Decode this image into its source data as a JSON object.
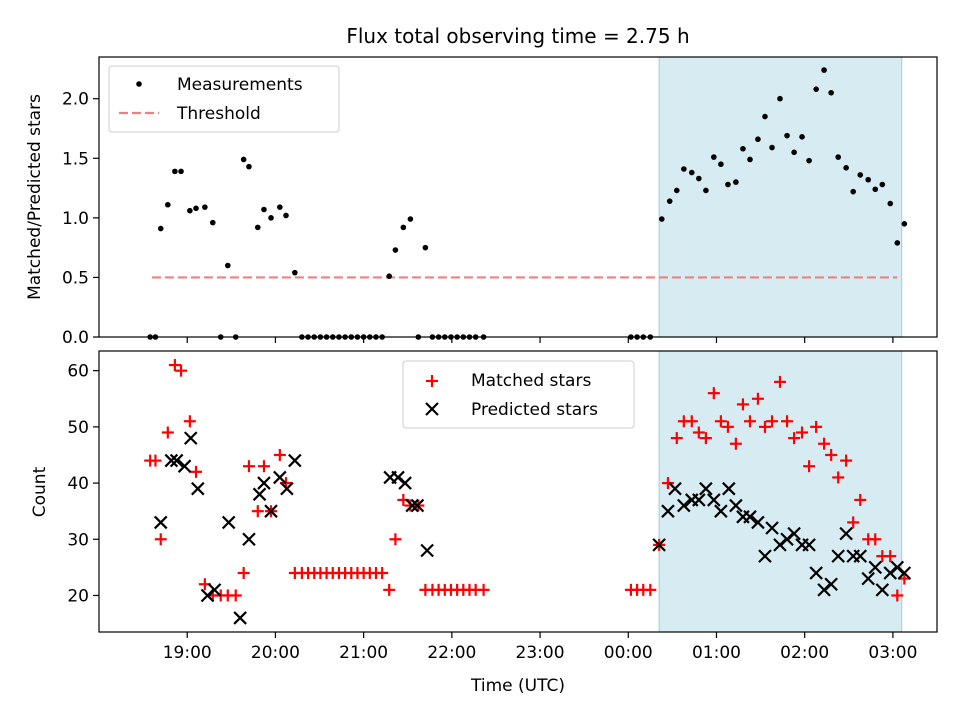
{
  "chart_data": [
    {
      "type": "scatter",
      "title": "Flux total observing time = 2.75 h",
      "ylabel": "Matched/Predicted stars",
      "xlabel": "",
      "ylim": [
        0,
        2.35
      ],
      "yticks": [
        0.0,
        0.5,
        1.0,
        1.5,
        2.0
      ],
      "ytick_labels": [
        "0.0",
        "0.5",
        "1.0",
        "1.5",
        "2.0"
      ],
      "legend": {
        "placement": "top-left",
        "entries": [
          "Measurements",
          "Threshold"
        ]
      },
      "threshold": 0.5,
      "threshold_x": [
        18.6,
        27.05
      ],
      "shaded_region": [
        24.35,
        27.1
      ],
      "series": [
        {
          "name": "Measurements",
          "color": "#000000",
          "points": [
            [
              18.58,
              0
            ],
            [
              18.64,
              0
            ],
            [
              18.7,
              0.91
            ],
            [
              18.78,
              1.11
            ],
            [
              18.86,
              1.39
            ],
            [
              18.93,
              1.39
            ],
            [
              19.03,
              1.06
            ],
            [
              19.1,
              1.08
            ],
            [
              19.2,
              1.09
            ],
            [
              19.29,
              0.96
            ],
            [
              19.38,
              0
            ],
            [
              19.46,
              0.6
            ],
            [
              19.55,
              0
            ],
            [
              19.64,
              1.49
            ],
            [
              19.7,
              1.43
            ],
            [
              19.8,
              0.92
            ],
            [
              19.87,
              1.07
            ],
            [
              19.95,
              1.0
            ],
            [
              20.05,
              1.09
            ],
            [
              20.12,
              1.02
            ],
            [
              20.22,
              0.54
            ],
            [
              20.3,
              0
            ],
            [
              20.37,
              0
            ],
            [
              20.44,
              0
            ],
            [
              20.51,
              0
            ],
            [
              20.58,
              0
            ],
            [
              20.65,
              0
            ],
            [
              20.72,
              0
            ],
            [
              20.79,
              0
            ],
            [
              20.86,
              0
            ],
            [
              20.93,
              0
            ],
            [
              21.0,
              0
            ],
            [
              21.07,
              0
            ],
            [
              21.14,
              0
            ],
            [
              21.21,
              0
            ],
            [
              21.29,
              0.51
            ],
            [
              21.36,
              0.73
            ],
            [
              21.45,
              0.92
            ],
            [
              21.53,
              0.99
            ],
            [
              21.62,
              0
            ],
            [
              21.7,
              0.75
            ],
            [
              21.78,
              0
            ],
            [
              21.85,
              0
            ],
            [
              21.92,
              0
            ],
            [
              21.99,
              0
            ],
            [
              22.06,
              0
            ],
            [
              22.13,
              0
            ],
            [
              22.2,
              0
            ],
            [
              22.27,
              0
            ],
            [
              22.36,
              0
            ],
            [
              24.03,
              0
            ],
            [
              24.1,
              0
            ],
            [
              24.17,
              0
            ],
            [
              24.25,
              0
            ],
            [
              24.38,
              0.99
            ],
            [
              24.47,
              1.14
            ],
            [
              24.55,
              1.23
            ],
            [
              24.63,
              1.41
            ],
            [
              24.72,
              1.38
            ],
            [
              24.8,
              1.33
            ],
            [
              24.88,
              1.23
            ],
            [
              24.97,
              1.51
            ],
            [
              25.05,
              1.45
            ],
            [
              25.13,
              1.28
            ],
            [
              25.22,
              1.3
            ],
            [
              25.3,
              1.58
            ],
            [
              25.38,
              1.49
            ],
            [
              25.47,
              1.66
            ],
            [
              25.55,
              1.85
            ],
            [
              25.63,
              1.59
            ],
            [
              25.72,
              2.0
            ],
            [
              25.8,
              1.69
            ],
            [
              25.88,
              1.55
            ],
            [
              25.97,
              1.68
            ],
            [
              26.05,
              1.48
            ],
            [
              26.13,
              2.08
            ],
            [
              26.22,
              2.24
            ],
            [
              26.3,
              2.05
            ],
            [
              26.38,
              1.51
            ],
            [
              26.47,
              1.42
            ],
            [
              26.55,
              1.22
            ],
            [
              26.63,
              1.36
            ],
            [
              26.72,
              1.32
            ],
            [
              26.8,
              1.24
            ],
            [
              26.88,
              1.28
            ],
            [
              26.97,
              1.12
            ],
            [
              27.05,
              0.79
            ],
            [
              27.13,
              0.95
            ]
          ]
        }
      ]
    },
    {
      "type": "scatter",
      "title": "",
      "xlabel": "Time (UTC)",
      "ylabel": "Count",
      "xlim": [
        18.0,
        27.5
      ],
      "ylim": [
        13.5,
        63.5
      ],
      "yticks": [
        20,
        30,
        40,
        50,
        60
      ],
      "ytick_labels": [
        "20",
        "30",
        "40",
        "50",
        "60"
      ],
      "xticks": [
        19,
        20,
        21,
        22,
        23,
        24,
        25,
        26,
        27
      ],
      "xtick_labels": [
        "19:00",
        "20:00",
        "21:00",
        "22:00",
        "23:00",
        "00:00",
        "01:00",
        "02:00",
        "03:00"
      ],
      "legend": {
        "placement": "top-center",
        "entries": [
          "Matched stars",
          "Predicted stars"
        ]
      },
      "shaded_region": [
        24.35,
        27.1
      ],
      "series": [
        {
          "name": "Matched stars",
          "color": "#ff0000",
          "marker": "plus",
          "points": [
            [
              18.58,
              44
            ],
            [
              18.64,
              44
            ],
            [
              18.7,
              30
            ],
            [
              18.78,
              49
            ],
            [
              18.86,
              61
            ],
            [
              18.93,
              60
            ],
            [
              19.03,
              51
            ],
            [
              19.1,
              42
            ],
            [
              19.2,
              22
            ],
            [
              19.29,
              20
            ],
            [
              19.38,
              20
            ],
            [
              19.46,
              20
            ],
            [
              19.55,
              20
            ],
            [
              19.64,
              24
            ],
            [
              19.7,
              43
            ],
            [
              19.8,
              35
            ],
            [
              19.87,
              43
            ],
            [
              19.95,
              35
            ],
            [
              20.05,
              45
            ],
            [
              20.12,
              40
            ],
            [
              20.22,
              24
            ],
            [
              20.3,
              24
            ],
            [
              20.37,
              24
            ],
            [
              20.44,
              24
            ],
            [
              20.51,
              24
            ],
            [
              20.58,
              24
            ],
            [
              20.65,
              24
            ],
            [
              20.72,
              24
            ],
            [
              20.79,
              24
            ],
            [
              20.86,
              24
            ],
            [
              20.93,
              24
            ],
            [
              21.0,
              24
            ],
            [
              21.07,
              24
            ],
            [
              21.14,
              24
            ],
            [
              21.21,
              24
            ],
            [
              21.29,
              21
            ],
            [
              21.36,
              30
            ],
            [
              21.45,
              37
            ],
            [
              21.53,
              36
            ],
            [
              21.62,
              36
            ],
            [
              21.7,
              21
            ],
            [
              21.78,
              21
            ],
            [
              21.85,
              21
            ],
            [
              21.92,
              21
            ],
            [
              21.99,
              21
            ],
            [
              22.06,
              21
            ],
            [
              22.13,
              21
            ],
            [
              22.2,
              21
            ],
            [
              22.27,
              21
            ],
            [
              22.36,
              21
            ],
            [
              24.03,
              21
            ],
            [
              24.1,
              21
            ],
            [
              24.17,
              21
            ],
            [
              24.25,
              21
            ],
            [
              24.35,
              29
            ],
            [
              24.45,
              40
            ],
            [
              24.55,
              48
            ],
            [
              24.63,
              51
            ],
            [
              24.72,
              51
            ],
            [
              24.8,
              49
            ],
            [
              24.88,
              48
            ],
            [
              24.97,
              56
            ],
            [
              25.05,
              51
            ],
            [
              25.13,
              50
            ],
            [
              25.22,
              47
            ],
            [
              25.3,
              54
            ],
            [
              25.38,
              51
            ],
            [
              25.47,
              55
            ],
            [
              25.55,
              50
            ],
            [
              25.63,
              51
            ],
            [
              25.72,
              58
            ],
            [
              25.8,
              51
            ],
            [
              25.88,
              48
            ],
            [
              25.97,
              49
            ],
            [
              26.05,
              43
            ],
            [
              26.13,
              50
            ],
            [
              26.22,
              47
            ],
            [
              26.3,
              45
            ],
            [
              26.38,
              41
            ],
            [
              26.47,
              44
            ],
            [
              26.55,
              33
            ],
            [
              26.63,
              37
            ],
            [
              26.72,
              30
            ],
            [
              26.8,
              30
            ],
            [
              26.88,
              27
            ],
            [
              26.97,
              27
            ],
            [
              27.05,
              20
            ],
            [
              27.13,
              23
            ]
          ]
        },
        {
          "name": "Predicted stars",
          "color": "#000000",
          "marker": "x",
          "points": [
            [
              18.7,
              33
            ],
            [
              18.82,
              44
            ],
            [
              18.88,
              44
            ],
            [
              18.97,
              43
            ],
            [
              19.04,
              48
            ],
            [
              19.12,
              39
            ],
            [
              19.23,
              20
            ],
            [
              19.31,
              21
            ],
            [
              19.47,
              33
            ],
            [
              19.6,
              16
            ],
            [
              19.7,
              30
            ],
            [
              19.82,
              38
            ],
            [
              19.87,
              40
            ],
            [
              19.95,
              35
            ],
            [
              20.05,
              41
            ],
            [
              20.13,
              39
            ],
            [
              20.22,
              44
            ],
            [
              21.3,
              41
            ],
            [
              21.39,
              41
            ],
            [
              21.47,
              40
            ],
            [
              21.55,
              36
            ],
            [
              21.61,
              36
            ],
            [
              21.72,
              28
            ],
            [
              24.35,
              29
            ],
            [
              24.45,
              35
            ],
            [
              24.53,
              39
            ],
            [
              24.63,
              36
            ],
            [
              24.72,
              37
            ],
            [
              24.8,
              37
            ],
            [
              24.88,
              39
            ],
            [
              24.97,
              37
            ],
            [
              25.05,
              35
            ],
            [
              25.14,
              39
            ],
            [
              25.22,
              36
            ],
            [
              25.3,
              34
            ],
            [
              25.38,
              34
            ],
            [
              25.47,
              33
            ],
            [
              25.55,
              27
            ],
            [
              25.63,
              32
            ],
            [
              25.72,
              29
            ],
            [
              25.8,
              30
            ],
            [
              25.88,
              31
            ],
            [
              25.97,
              29
            ],
            [
              26.05,
              29
            ],
            [
              26.13,
              24
            ],
            [
              26.22,
              21
            ],
            [
              26.3,
              22
            ],
            [
              26.38,
              27
            ],
            [
              26.47,
              31
            ],
            [
              26.55,
              27
            ],
            [
              26.63,
              27
            ],
            [
              26.72,
              23
            ],
            [
              26.8,
              25
            ],
            [
              26.88,
              21
            ],
            [
              26.97,
              24
            ],
            [
              27.05,
              25
            ],
            [
              27.13,
              24
            ]
          ]
        }
      ]
    }
  ]
}
